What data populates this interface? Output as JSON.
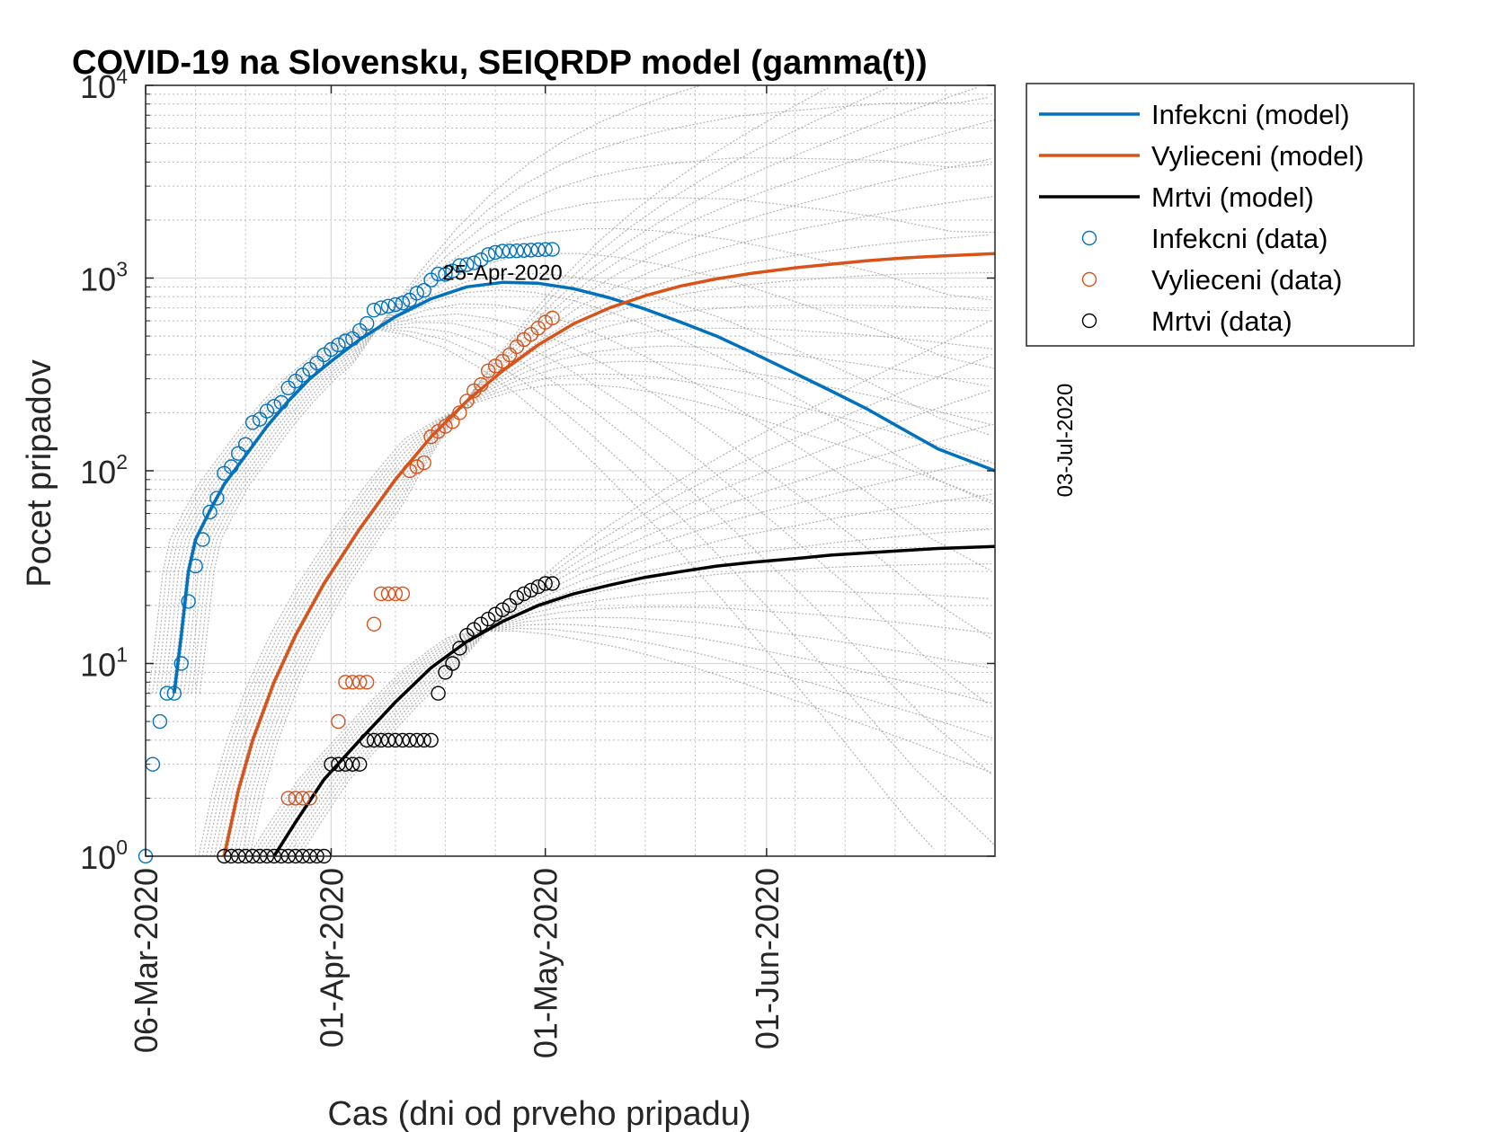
{
  "chart_data": {
    "type": "scatter",
    "title": "COVID-19 na Slovensku, SEIQRDP model (gamma(t))",
    "xlabel": "Cas (dni od prveho pripadu)",
    "ylabel": "Pocet pripadov",
    "yscale": "log",
    "ylim": [
      1,
      10000
    ],
    "xlim": [
      "2020-03-06",
      "2020-07-03"
    ],
    "grid": true,
    "legend_position": "outside-top-right",
    "x_ticks": [
      "06-Mar-2020",
      "01-Apr-2020",
      "01-May-2020",
      "01-Jun-2020"
    ],
    "x_tick_dates": [
      "2020-03-06",
      "2020-04-01",
      "2020-05-01",
      "2020-06-01"
    ],
    "y_ticks": [
      {
        "base": "10",
        "exp": "0",
        "value": 1
      },
      {
        "base": "10",
        "exp": "1",
        "value": 10
      },
      {
        "base": "10",
        "exp": "2",
        "value": 100
      },
      {
        "base": "10",
        "exp": "3",
        "value": 1000
      },
      {
        "base": "10",
        "exp": "4",
        "value": 10000
      }
    ],
    "annotations": [
      {
        "text": "25-Apr-2020",
        "x": "2020-04-25",
        "y": 940,
        "orientation": "horizontal"
      },
      {
        "text": "03-Jul-2020",
        "x": "2020-07-03",
        "y": 100,
        "orientation": "vertical"
      }
    ],
    "colors": {
      "infected": "#0072BD",
      "recovered": "#D95319",
      "deaths": "#000000",
      "ensemble": "#999999"
    },
    "series": [
      {
        "name": "Infekcni (model)",
        "kind": "line",
        "color": "#0072BD",
        "x": [
          "2020-03-10",
          "2020-03-11",
          "2020-03-12",
          "2020-03-13",
          "2020-03-15",
          "2020-03-17",
          "2020-03-20",
          "2020-03-23",
          "2020-03-26",
          "2020-03-29",
          "2020-04-01",
          "2020-04-05",
          "2020-04-10",
          "2020-04-15",
          "2020-04-20",
          "2020-04-25",
          "2020-04-30",
          "2020-05-05",
          "2020-05-10",
          "2020-05-15",
          "2020-05-20",
          "2020-05-25",
          "2020-05-30",
          "2020-06-05",
          "2020-06-10",
          "2020-06-15",
          "2020-06-20",
          "2020-06-25",
          "2020-07-03"
        ],
        "y": [
          7,
          14,
          30,
          44,
          62,
          85,
          120,
          170,
          230,
          300,
          370,
          480,
          630,
          780,
          900,
          950,
          940,
          880,
          790,
          690,
          590,
          500,
          410,
          320,
          260,
          210,
          165,
          130,
          100
        ]
      },
      {
        "name": "Vylieceni (model)",
        "kind": "line",
        "color": "#D95319",
        "x": [
          "2020-03-17",
          "2020-03-19",
          "2020-03-21",
          "2020-03-24",
          "2020-03-27",
          "2020-03-31",
          "2020-04-05",
          "2020-04-10",
          "2020-04-15",
          "2020-04-20",
          "2020-04-25",
          "2020-04-30",
          "2020-05-05",
          "2020-05-10",
          "2020-05-15",
          "2020-05-20",
          "2020-05-25",
          "2020-05-30",
          "2020-06-05",
          "2020-06-10",
          "2020-06-15",
          "2020-06-20",
          "2020-06-25",
          "2020-07-03"
        ],
        "y": [
          1,
          2.2,
          4,
          8,
          14,
          26,
          50,
          90,
          150,
          230,
          330,
          450,
          580,
          700,
          810,
          910,
          990,
          1060,
          1130,
          1180,
          1230,
          1270,
          1300,
          1340
        ]
      },
      {
        "name": "Mrtvi (model)",
        "kind": "line",
        "color": "#000000",
        "x": [
          "2020-03-24",
          "2020-03-27",
          "2020-03-31",
          "2020-04-05",
          "2020-04-10",
          "2020-04-15",
          "2020-04-20",
          "2020-04-25",
          "2020-04-30",
          "2020-05-05",
          "2020-05-10",
          "2020-05-15",
          "2020-05-20",
          "2020-05-25",
          "2020-05-30",
          "2020-06-05",
          "2020-06-10",
          "2020-06-15",
          "2020-06-20",
          "2020-06-25",
          "2020-07-03"
        ],
        "y": [
          1,
          1.5,
          2.5,
          4,
          6.3,
          9.5,
          13,
          16.5,
          20,
          23,
          25.5,
          28,
          30,
          32,
          33.5,
          35,
          36.5,
          37.5,
          38.5,
          39.5,
          40.5
        ]
      },
      {
        "name": "Infekcni (data)",
        "kind": "scatter",
        "color": "#0072BD",
        "x": [
          "2020-03-06",
          "2020-03-07",
          "2020-03-08",
          "2020-03-09",
          "2020-03-10",
          "2020-03-11",
          "2020-03-12",
          "2020-03-13",
          "2020-03-14",
          "2020-03-15",
          "2020-03-16",
          "2020-03-17",
          "2020-03-18",
          "2020-03-19",
          "2020-03-20",
          "2020-03-21",
          "2020-03-22",
          "2020-03-23",
          "2020-03-24",
          "2020-03-25",
          "2020-03-26",
          "2020-03-27",
          "2020-03-28",
          "2020-03-29",
          "2020-03-30",
          "2020-03-31",
          "2020-04-01",
          "2020-04-02",
          "2020-04-03",
          "2020-04-04",
          "2020-04-05",
          "2020-04-06",
          "2020-04-07",
          "2020-04-08",
          "2020-04-09",
          "2020-04-10",
          "2020-04-11",
          "2020-04-12",
          "2020-04-13",
          "2020-04-14",
          "2020-04-15",
          "2020-04-16",
          "2020-04-17",
          "2020-04-18",
          "2020-04-19",
          "2020-04-20",
          "2020-04-21",
          "2020-04-22",
          "2020-04-23",
          "2020-04-24",
          "2020-04-25",
          "2020-04-26",
          "2020-04-27",
          "2020-04-28",
          "2020-04-29",
          "2020-04-30",
          "2020-05-01",
          "2020-05-02"
        ],
        "y": [
          1,
          3,
          5,
          7,
          7,
          10,
          21,
          32,
          44,
          61,
          72,
          97,
          105,
          123,
          137,
          178,
          185,
          204,
          216,
          226,
          269,
          292,
          314,
          336,
          363,
          400,
          426,
          450,
          471,
          485,
          534,
          581,
          682,
          701,
          715,
          728,
          742,
          769,
          835,
          863,
          977,
          1049,
          1045,
          1089,
          1161,
          1173,
          1199,
          1244,
          1325,
          1360,
          1379,
          1381,
          1384,
          1391,
          1396,
          1403,
          1407,
          1408
        ]
      },
      {
        "name": "Vylieceni (data)",
        "kind": "scatter",
        "color": "#D95319",
        "x": [
          "2020-03-26",
          "2020-03-27",
          "2020-03-28",
          "2020-03-29",
          "2020-04-02",
          "2020-04-03",
          "2020-04-04",
          "2020-04-05",
          "2020-04-06",
          "2020-04-07",
          "2020-04-08",
          "2020-04-09",
          "2020-04-10",
          "2020-04-11",
          "2020-04-12",
          "2020-04-13",
          "2020-04-14",
          "2020-04-15",
          "2020-04-16",
          "2020-04-17",
          "2020-04-18",
          "2020-04-19",
          "2020-04-20",
          "2020-04-21",
          "2020-04-22",
          "2020-04-23",
          "2020-04-24",
          "2020-04-25",
          "2020-04-26",
          "2020-04-27",
          "2020-04-28",
          "2020-04-29",
          "2020-04-30",
          "2020-05-01",
          "2020-05-02"
        ],
        "y": [
          2,
          2,
          2,
          2,
          5,
          8,
          8,
          8,
          8,
          16,
          23,
          23,
          23,
          23,
          100,
          105,
          110,
          150,
          160,
          170,
          180,
          200,
          230,
          260,
          280,
          330,
          350,
          370,
          400,
          440,
          480,
          510,
          550,
          590,
          620
        ]
      },
      {
        "name": "Mrtvi (data)",
        "kind": "scatter",
        "color": "#000000",
        "x": [
          "2020-03-17",
          "2020-03-18",
          "2020-03-19",
          "2020-03-20",
          "2020-03-21",
          "2020-03-22",
          "2020-03-23",
          "2020-03-24",
          "2020-03-25",
          "2020-03-26",
          "2020-03-27",
          "2020-03-28",
          "2020-03-29",
          "2020-03-30",
          "2020-03-31",
          "2020-04-01",
          "2020-04-02",
          "2020-04-03",
          "2020-04-04",
          "2020-04-05",
          "2020-04-06",
          "2020-04-07",
          "2020-04-08",
          "2020-04-09",
          "2020-04-10",
          "2020-04-11",
          "2020-04-12",
          "2020-04-13",
          "2020-04-14",
          "2020-04-15",
          "2020-04-16",
          "2020-04-17",
          "2020-04-18",
          "2020-04-19",
          "2020-04-20",
          "2020-04-21",
          "2020-04-22",
          "2020-04-23",
          "2020-04-24",
          "2020-04-25",
          "2020-04-26",
          "2020-04-27",
          "2020-04-28",
          "2020-04-29",
          "2020-04-30",
          "2020-05-01",
          "2020-05-02"
        ],
        "y": [
          1,
          1,
          1,
          1,
          1,
          1,
          1,
          1,
          1,
          1,
          1,
          1,
          1,
          1,
          1,
          3,
          3,
          3,
          3,
          3,
          4,
          4,
          4,
          4,
          4,
          4,
          4,
          4,
          4,
          4,
          7,
          9,
          10,
          12,
          14,
          15,
          16,
          17,
          18,
          19,
          20,
          22,
          23,
          24,
          25,
          26,
          26
        ]
      }
    ]
  }
}
